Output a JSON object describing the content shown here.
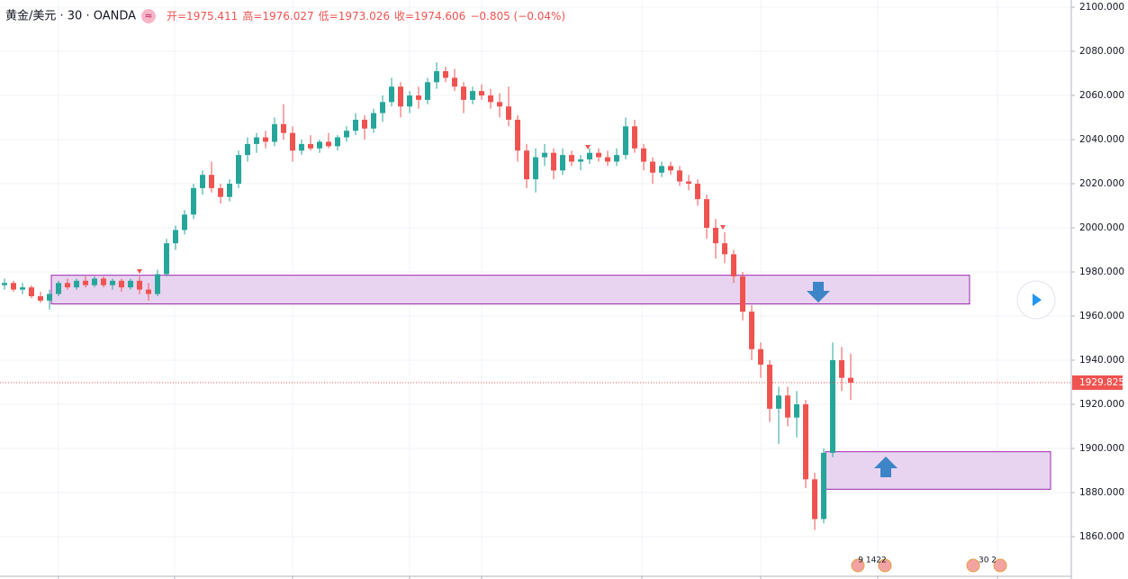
{
  "chart_data": {
    "type": "candlestick",
    "symbol": "黄金/美元 · 30 · OANDA",
    "indicator": "≈",
    "ohlc_legend": [
      "开=1975.411",
      "高=1976.027",
      "低=1973.026",
      "收=1974.606",
      "−0.805 (−0.04%)"
    ],
    "up_color": "#26a69a",
    "down_color": "#ef5350",
    "ylim": [
      1850.6,
      2103.3
    ],
    "yticks": [
      {
        "value": 1860,
        "label": "1860.000"
      },
      {
        "value": 1880,
        "label": "1880.000"
      },
      {
        "value": 1900,
        "label": "1900.000"
      },
      {
        "value": 1920,
        "label": "1920.000"
      },
      {
        "value": 1940,
        "label": "1940.000"
      },
      {
        "value": 1960,
        "label": "1960.000"
      },
      {
        "value": 1980,
        "label": "1980.000"
      },
      {
        "value": 2000,
        "label": "2000.000"
      },
      {
        "value": 2020,
        "label": "2020.000"
      },
      {
        "value": 2040,
        "label": "2040.000"
      },
      {
        "value": 2060,
        "label": "2060.000"
      },
      {
        "value": 2080,
        "label": "2080.000"
      },
      {
        "value": 2100,
        "label": "2100.000"
      }
    ],
    "grid": true,
    "last_price": 1929.825,
    "zones": [
      {
        "top": 1978.5,
        "bottom": 1965.5,
        "color": "#e8d4f0"
      },
      {
        "top": 1898.5,
        "bottom": 1881.5,
        "color": "#e8d4f0"
      }
    ],
    "events": [
      "9 1422",
      "30 2"
    ],
    "candles": [
      {
        "o": 1974,
        "h": 1977,
        "l": 1972,
        "c": 1975
      },
      {
        "o": 1975,
        "h": 1976,
        "l": 1971,
        "c": 1972
      },
      {
        "o": 1972,
        "h": 1975,
        "l": 1970,
        "c": 1973
      },
      {
        "o": 1973,
        "h": 1974,
        "l": 1968,
        "c": 1969
      },
      {
        "o": 1969,
        "h": 1971,
        "l": 1966,
        "c": 1967
      },
      {
        "o": 1967,
        "h": 1972,
        "l": 1963,
        "c": 1970
      },
      {
        "o": 1970,
        "h": 1976,
        "l": 1969,
        "c": 1975
      },
      {
        "o": 1975,
        "h": 1977,
        "l": 1972,
        "c": 1973
      },
      {
        "o": 1973,
        "h": 1977,
        "l": 1972,
        "c": 1976
      },
      {
        "o": 1976,
        "h": 1978,
        "l": 1973,
        "c": 1974
      },
      {
        "o": 1974,
        "h": 1978,
        "l": 1973,
        "c": 1977
      },
      {
        "o": 1977,
        "h": 1978,
        "l": 1973,
        "c": 1974
      },
      {
        "o": 1974,
        "h": 1977,
        "l": 1972,
        "c": 1976
      },
      {
        "o": 1976,
        "h": 1977,
        "l": 1971,
        "c": 1973
      },
      {
        "o": 1973,
        "h": 1977,
        "l": 1972,
        "c": 1976
      },
      {
        "o": 1976,
        "h": 1978,
        "l": 1970,
        "c": 1972
      },
      {
        "o": 1972,
        "h": 1975,
        "l": 1967,
        "c": 1970
      },
      {
        "o": 1970,
        "h": 1981,
        "l": 1969,
        "c": 1979
      },
      {
        "o": 1979,
        "h": 1995,
        "l": 1978,
        "c": 1993
      },
      {
        "o": 1993,
        "h": 2001,
        "l": 1990,
        "c": 1999
      },
      {
        "o": 1999,
        "h": 2008,
        "l": 1997,
        "c": 2006
      },
      {
        "o": 2006,
        "h": 2020,
        "l": 2004,
        "c": 2018
      },
      {
        "o": 2018,
        "h": 2026,
        "l": 2015,
        "c": 2024
      },
      {
        "o": 2024,
        "h": 2030,
        "l": 2016,
        "c": 2018
      },
      {
        "o": 2018,
        "h": 2020,
        "l": 2011,
        "c": 2014
      },
      {
        "o": 2014,
        "h": 2022,
        "l": 2012,
        "c": 2020
      },
      {
        "o": 2020,
        "h": 2035,
        "l": 2018,
        "c": 2033
      },
      {
        "o": 2033,
        "h": 2041,
        "l": 2030,
        "c": 2038
      },
      {
        "o": 2038,
        "h": 2043,
        "l": 2034,
        "c": 2041
      },
      {
        "o": 2041,
        "h": 2044,
        "l": 2036,
        "c": 2039
      },
      {
        "o": 2039,
        "h": 2050,
        "l": 2037,
        "c": 2047
      },
      {
        "o": 2047,
        "h": 2056,
        "l": 2040,
        "c": 2043
      },
      {
        "o": 2043,
        "h": 2046,
        "l": 2030,
        "c": 2035
      },
      {
        "o": 2035,
        "h": 2040,
        "l": 2033,
        "c": 2038
      },
      {
        "o": 2038,
        "h": 2042,
        "l": 2035,
        "c": 2036
      },
      {
        "o": 2036,
        "h": 2040,
        "l": 2034,
        "c": 2039
      },
      {
        "o": 2039,
        "h": 2043,
        "l": 2036,
        "c": 2037
      },
      {
        "o": 2037,
        "h": 2042,
        "l": 2035,
        "c": 2041
      },
      {
        "o": 2041,
        "h": 2046,
        "l": 2039,
        "c": 2044
      },
      {
        "o": 2044,
        "h": 2052,
        "l": 2042,
        "c": 2049
      },
      {
        "o": 2049,
        "h": 2051,
        "l": 2040,
        "c": 2045
      },
      {
        "o": 2045,
        "h": 2054,
        "l": 2043,
        "c": 2052
      },
      {
        "o": 2052,
        "h": 2060,
        "l": 2048,
        "c": 2057
      },
      {
        "o": 2057,
        "h": 2068,
        "l": 2055,
        "c": 2064
      },
      {
        "o": 2064,
        "h": 2066,
        "l": 2050,
        "c": 2055
      },
      {
        "o": 2055,
        "h": 2062,
        "l": 2052,
        "c": 2060
      },
      {
        "o": 2060,
        "h": 2064,
        "l": 2054,
        "c": 2058
      },
      {
        "o": 2058,
        "h": 2068,
        "l": 2056,
        "c": 2066
      },
      {
        "o": 2066,
        "h": 2075,
        "l": 2063,
        "c": 2071
      },
      {
        "o": 2071,
        "h": 2073,
        "l": 2066,
        "c": 2068
      },
      {
        "o": 2068,
        "h": 2072,
        "l": 2062,
        "c": 2064
      },
      {
        "o": 2064,
        "h": 2066,
        "l": 2052,
        "c": 2058
      },
      {
        "o": 2058,
        "h": 2064,
        "l": 2056,
        "c": 2062
      },
      {
        "o": 2062,
        "h": 2065,
        "l": 2058,
        "c": 2060
      },
      {
        "o": 2060,
        "h": 2063,
        "l": 2054,
        "c": 2057
      },
      {
        "o": 2057,
        "h": 2061,
        "l": 2050,
        "c": 2055
      },
      {
        "o": 2055,
        "h": 2064,
        "l": 2046,
        "c": 2049
      },
      {
        "o": 2049,
        "h": 2051,
        "l": 2030,
        "c": 2035
      },
      {
        "o": 2035,
        "h": 2038,
        "l": 2018,
        "c": 2022
      },
      {
        "o": 2022,
        "h": 2036,
        "l": 2016,
        "c": 2032
      },
      {
        "o": 2032,
        "h": 2038,
        "l": 2028,
        "c": 2034
      },
      {
        "o": 2034,
        "h": 2036,
        "l": 2022,
        "c": 2026
      },
      {
        "o": 2026,
        "h": 2036,
        "l": 2024,
        "c": 2033
      },
      {
        "o": 2033,
        "h": 2035,
        "l": 2028,
        "c": 2030
      },
      {
        "o": 2030,
        "h": 2033,
        "l": 2026,
        "c": 2031
      },
      {
        "o": 2031,
        "h": 2036,
        "l": 2029,
        "c": 2034
      },
      {
        "o": 2034,
        "h": 2036,
        "l": 2030,
        "c": 2032
      },
      {
        "o": 2032,
        "h": 2035,
        "l": 2028,
        "c": 2030
      },
      {
        "o": 2030,
        "h": 2036,
        "l": 2028,
        "c": 2033
      },
      {
        "o": 2033,
        "h": 2050,
        "l": 2031,
        "c": 2046
      },
      {
        "o": 2046,
        "h": 2049,
        "l": 2034,
        "c": 2036
      },
      {
        "o": 2036,
        "h": 2038,
        "l": 2026,
        "c": 2030
      },
      {
        "o": 2030,
        "h": 2032,
        "l": 2020,
        "c": 2025
      },
      {
        "o": 2025,
        "h": 2030,
        "l": 2023,
        "c": 2028
      },
      {
        "o": 2028,
        "h": 2030,
        "l": 2024,
        "c": 2026
      },
      {
        "o": 2026,
        "h": 2028,
        "l": 2019,
        "c": 2021
      },
      {
        "o": 2021,
        "h": 2024,
        "l": 2017,
        "c": 2020
      },
      {
        "o": 2020,
        "h": 2022,
        "l": 2010,
        "c": 2013
      },
      {
        "o": 2013,
        "h": 2015,
        "l": 1995,
        "c": 2000
      },
      {
        "o": 2000,
        "h": 2004,
        "l": 1986,
        "c": 1993
      },
      {
        "o": 1993,
        "h": 1998,
        "l": 1984,
        "c": 1988
      },
      {
        "o": 1988,
        "h": 1990,
        "l": 1975,
        "c": 1978
      },
      {
        "o": 1978,
        "h": 1980,
        "l": 1958,
        "c": 1962
      },
      {
        "o": 1962,
        "h": 1965,
        "l": 1940,
        "c": 1945
      },
      {
        "o": 1945,
        "h": 1948,
        "l": 1932,
        "c": 1938
      },
      {
        "o": 1938,
        "h": 1940,
        "l": 1912,
        "c": 1918
      },
      {
        "o": 1918,
        "h": 1928,
        "l": 1902,
        "c": 1924
      },
      {
        "o": 1924,
        "h": 1928,
        "l": 1910,
        "c": 1914
      },
      {
        "o": 1914,
        "h": 1926,
        "l": 1905,
        "c": 1920
      },
      {
        "o": 1920,
        "h": 1922,
        "l": 1882,
        "c": 1886
      },
      {
        "o": 1886,
        "h": 1889,
        "l": 1863,
        "c": 1868
      },
      {
        "o": 1868,
        "h": 1900,
        "l": 1866,
        "c": 1898
      },
      {
        "o": 1898,
        "h": 1948,
        "l": 1896,
        "c": 1940
      },
      {
        "o": 1940,
        "h": 1946,
        "l": 1926,
        "c": 1932
      },
      {
        "o": 1932,
        "h": 1943,
        "l": 1922,
        "c": 1929.825
      }
    ]
  }
}
